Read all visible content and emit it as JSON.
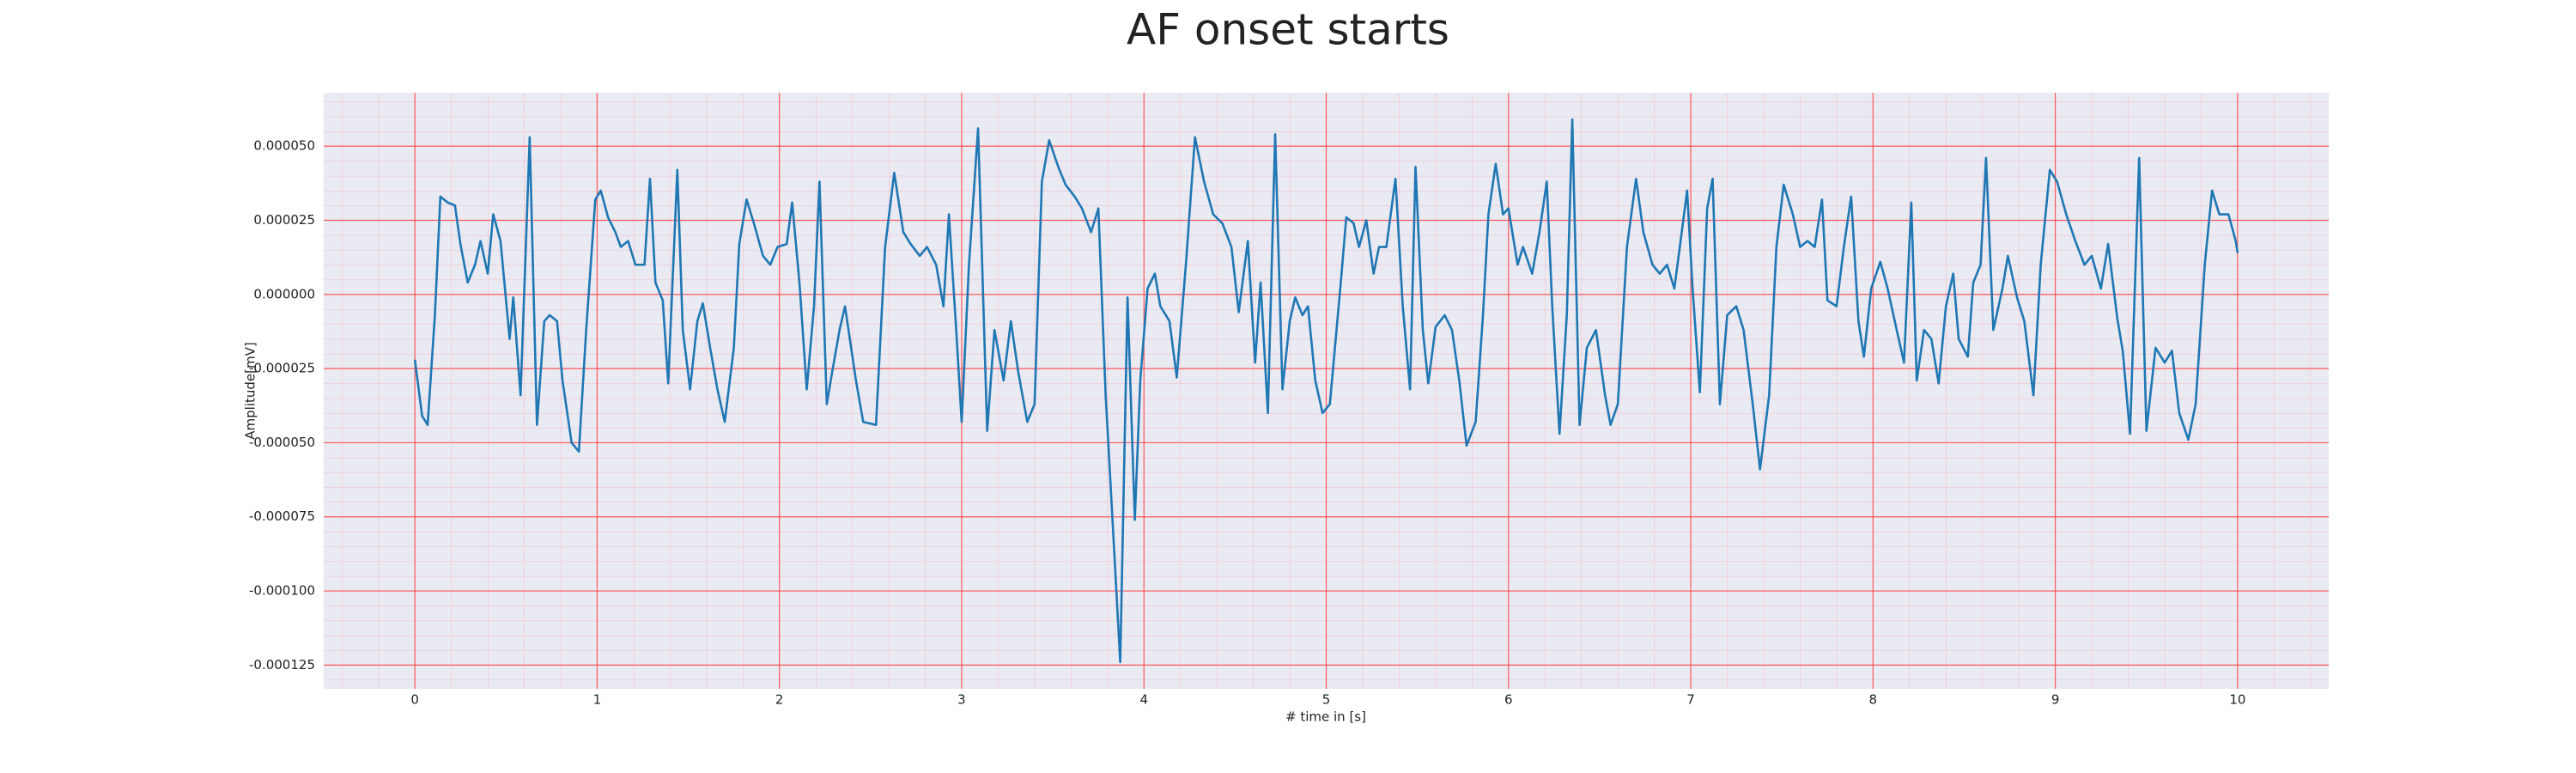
{
  "chart_data": {
    "type": "line",
    "title": "AF onset starts",
    "x_label": "# time in [s]",
    "y_label": "Amplitude[mV]",
    "x": [
      0,
      0.04,
      0.07,
      0.11,
      0.14,
      0.18,
      0.22,
      0.25,
      0.29,
      0.33,
      0.36,
      0.4,
      0.43,
      0.47,
      0.52,
      0.54,
      0.58,
      0.63,
      0.67,
      0.71,
      0.74,
      0.78,
      0.81,
      0.86,
      0.9,
      0.94,
      0.99,
      1.02,
      1.06,
      1.1,
      1.13,
      1.17,
      1.21,
      1.26,
      1.29,
      1.32,
      1.36,
      1.39,
      1.44,
      1.47,
      1.51,
      1.55,
      1.58,
      1.62,
      1.66,
      1.7,
      1.75,
      1.78,
      1.82,
      1.86,
      1.91,
      1.95,
      1.99,
      2.04,
      2.07,
      2.11,
      2.15,
      2.19,
      2.22,
      2.26,
      2.29,
      2.33,
      2.36,
      2.42,
      2.46,
      2.53,
      2.58,
      2.63,
      2.68,
      2.72,
      2.77,
      2.81,
      2.86,
      2.9,
      2.93,
      2.97,
      3.0,
      3.04,
      3.09,
      3.14,
      3.18,
      3.23,
      3.27,
      3.31,
      3.36,
      3.4,
      3.44,
      3.48,
      3.53,
      3.57,
      3.62,
      3.66,
      3.71,
      3.75,
      3.79,
      3.84,
      3.87,
      3.91,
      3.95,
      3.98,
      4.02,
      4.06,
      4.09,
      4.14,
      4.18,
      4.23,
      4.28,
      4.33,
      4.38,
      4.43,
      4.48,
      4.52,
      4.57,
      4.61,
      4.64,
      4.68,
      4.72,
      4.76,
      4.8,
      4.83,
      4.87,
      4.9,
      4.94,
      4.98,
      5.02,
      5.08,
      5.11,
      5.15,
      5.18,
      5.22,
      5.26,
      5.29,
      5.33,
      5.38,
      5.42,
      5.46,
      5.49,
      5.53,
      5.56,
      5.6,
      5.65,
      5.69,
      5.73,
      5.77,
      5.82,
      5.86,
      5.89,
      5.93,
      5.97,
      6.0,
      6.05,
      6.08,
      6.13,
      6.17,
      6.21,
      6.24,
      6.28,
      6.32,
      6.35,
      6.39,
      6.43,
      6.48,
      6.53,
      6.56,
      6.6,
      6.65,
      6.7,
      6.74,
      6.79,
      6.83,
      6.87,
      6.91,
      6.94,
      6.98,
      7.01,
      7.05,
      7.09,
      7.12,
      7.16,
      7.2,
      7.25,
      7.29,
      7.34,
      7.38,
      7.43,
      7.47,
      7.51,
      7.56,
      7.6,
      7.64,
      7.68,
      7.72,
      7.75,
      7.8,
      7.84,
      7.88,
      7.92,
      7.95,
      7.99,
      8.04,
      8.08,
      8.13,
      8.17,
      8.21,
      8.24,
      8.28,
      8.32,
      8.36,
      8.4,
      8.44,
      8.47,
      8.52,
      8.55,
      8.59,
      8.62,
      8.66,
      8.71,
      8.74,
      8.79,
      8.83,
      8.88,
      8.92,
      8.97,
      9.01,
      9.06,
      9.11,
      9.16,
      9.2,
      9.25,
      9.29,
      9.34,
      9.37,
      9.41,
      9.46,
      9.5,
      9.55,
      9.6,
      9.64,
      9.68,
      9.73,
      9.77,
      9.82,
      9.86,
      9.9,
      9.95,
      9.99,
      10.0
    ],
    "values": [
      -2.2e-05,
      -4.1e-05,
      -4.4e-05,
      -7e-06,
      3.3e-05,
      3.1e-05,
      3e-05,
      1.7e-05,
      4e-06,
      1e-05,
      1.8e-05,
      7e-06,
      2.7e-05,
      1.8e-05,
      -1.5e-05,
      -1e-06,
      -3.4e-05,
      5.3e-05,
      -4.4e-05,
      -9e-06,
      -7e-06,
      -9e-06,
      -2.9e-05,
      -5e-05,
      -5.3e-05,
      -1.2e-05,
      3.2e-05,
      3.5e-05,
      2.6e-05,
      2.1e-05,
      1.6e-05,
      1.8e-05,
      1e-05,
      1e-05,
      3.9e-05,
      4e-06,
      -2e-06,
      -3e-05,
      4.2e-05,
      -1.2e-05,
      -3.2e-05,
      -9e-06,
      -3e-06,
      -1.8e-05,
      -3.2e-05,
      -4.3e-05,
      -1.8e-05,
      1.7e-05,
      3.2e-05,
      2.4e-05,
      1.3e-05,
      1e-05,
      1.6e-05,
      1.7e-05,
      3.1e-05,
      4e-06,
      -3.2e-05,
      -4e-06,
      3.8e-05,
      -3.7e-05,
      -2.6e-05,
      -1.2e-05,
      -4e-06,
      -2.9e-05,
      -4.3e-05,
      -4.4e-05,
      1.6e-05,
      4.1e-05,
      2.1e-05,
      1.7e-05,
      1.3e-05,
      1.6e-05,
      1e-05,
      -4e-06,
      2.7e-05,
      -1.2e-05,
      -4.3e-05,
      1e-05,
      5.6e-05,
      -4.6e-05,
      -1.2e-05,
      -2.9e-05,
      -9e-06,
      -2.6e-05,
      -4.3e-05,
      -3.7e-05,
      3.8e-05,
      5.2e-05,
      4.3e-05,
      3.7e-05,
      3.3e-05,
      2.9e-05,
      2.1e-05,
      2.9e-05,
      -3.4e-05,
      -9e-05,
      -0.000124,
      -1e-06,
      -7.6e-05,
      -2.9e-05,
      2e-06,
      7e-06,
      -4e-06,
      -9e-06,
      -2.8e-05,
      1e-05,
      5.3e-05,
      3.8e-05,
      2.7e-05,
      2.4e-05,
      1.6e-05,
      -6e-06,
      1.8e-05,
      -2.3e-05,
      4e-06,
      -4e-05,
      5.4e-05,
      -3.2e-05,
      -9e-06,
      -1e-06,
      -7e-06,
      -4e-06,
      -2.9e-05,
      -4e-05,
      -3.7e-05,
      4e-06,
      2.6e-05,
      2.4e-05,
      1.6e-05,
      2.5e-05,
      7e-06,
      1.6e-05,
      1.6e-05,
      3.9e-05,
      -4e-06,
      -3.2e-05,
      4.3e-05,
      -1.2e-05,
      -3e-05,
      -1.1e-05,
      -7e-06,
      -1.2e-05,
      -2.9e-05,
      -5.1e-05,
      -4.3e-05,
      -7e-06,
      2.7e-05,
      4.4e-05,
      2.7e-05,
      2.9e-05,
      1e-05,
      1.6e-05,
      7e-06,
      2.1e-05,
      3.8e-05,
      -4e-06,
      -4.7e-05,
      -7e-06,
      5.9e-05,
      -4.4e-05,
      -1.8e-05,
      -1.2e-05,
      -3.4e-05,
      -4.4e-05,
      -3.7e-05,
      1.6e-05,
      3.9e-05,
      2.1e-05,
      1e-05,
      7e-06,
      1e-05,
      2e-06,
      1.6e-05,
      3.5e-05,
      2e-06,
      -3.3e-05,
      2.9e-05,
      3.9e-05,
      -3.7e-05,
      -7e-06,
      -4e-06,
      -1.2e-05,
      -3.7e-05,
      -5.9e-05,
      -3.4e-05,
      1.6e-05,
      3.7e-05,
      2.7e-05,
      1.6e-05,
      1.8e-05,
      1.6e-05,
      3.2e-05,
      -2e-06,
      -4e-06,
      1.6e-05,
      3.3e-05,
      -9e-06,
      -2.1e-05,
      2e-06,
      1.1e-05,
      2e-06,
      -1.2e-05,
      -2.3e-05,
      3.1e-05,
      -2.9e-05,
      -1.2e-05,
      -1.5e-05,
      -3e-05,
      -4e-06,
      7e-06,
      -1.5e-05,
      -2.1e-05,
      4e-06,
      1e-05,
      4.6e-05,
      -1.2e-05,
      2e-06,
      1.3e-05,
      -1e-06,
      -9e-06,
      -3.4e-05,
      1e-05,
      4.2e-05,
      3.8e-05,
      2.7e-05,
      1.8e-05,
      1e-05,
      1.3e-05,
      2e-06,
      1.7e-05,
      -8e-06,
      -1.9e-05,
      -4.7e-05,
      4.6e-05,
      -4.6e-05,
      -1.8e-05,
      -2.3e-05,
      -1.9e-05,
      -4e-05,
      -4.9e-05,
      -3.7e-05,
      1e-05,
      3.5e-05,
      2.7e-05,
      2.7e-05,
      1.8e-05,
      1.4e-05
    ],
    "color": "#1f77b4",
    "xlim": [
      -0.5,
      10.5
    ],
    "xticks": [
      0,
      1,
      2,
      3,
      4,
      5,
      6,
      7,
      8,
      9,
      10
    ],
    "ylim": [
      -0.000133,
      6.8e-05
    ],
    "yticks": [
      {
        "value": -0.000125,
        "label": "-0.000125"
      },
      {
        "value": -0.0001,
        "label": "-0.000100"
      },
      {
        "value": -7.5e-05,
        "label": "-0.000075"
      },
      {
        "value": -5e-05,
        "label": "-0.000050"
      },
      {
        "value": -2.5e-05,
        "label": "-0.000025"
      },
      {
        "value": 0,
        "label": "0.000000"
      },
      {
        "value": 2.5e-05,
        "label": "0.000025"
      },
      {
        "value": 5e-05,
        "label": "0.000050"
      }
    ],
    "grid": true,
    "grid_color": "#ff3b3b"
  }
}
